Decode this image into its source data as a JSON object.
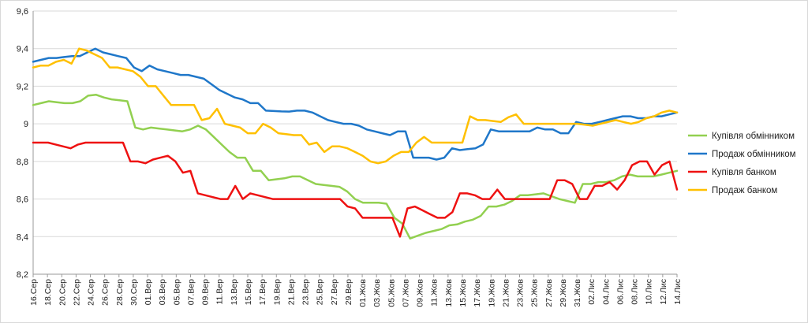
{
  "chart_data": {
    "type": "line",
    "title": "",
    "xlabel": "",
    "ylabel": "",
    "ylim": [
      8.2,
      9.6
    ],
    "y_ticks": [
      "8,2",
      "8,4",
      "8,6",
      "8,8",
      "9",
      "9,2",
      "9,4",
      "9,6"
    ],
    "grid": "horizontal",
    "legend_position": "right",
    "x_tick_labels": [
      "16.Сер",
      "18.Сер",
      "20.Сер",
      "22.Сер",
      "24.Сер",
      "26.Сер",
      "28.Сер",
      "30.Сер",
      "01.Вер",
      "03.Вер",
      "05.Вер",
      "07.Вер",
      "09.Вер",
      "11.Вер",
      "13.Вер",
      "15.Вер",
      "17.Вер",
      "19.Вер",
      "21.Вер",
      "23.Вер",
      "25.Вер",
      "27.Вер",
      "29.Вер",
      "01.Жов",
      "03.Жов",
      "05.Жов",
      "07.Жов",
      "09.Жов",
      "11.Жов",
      "13.Жов",
      "15.Жов",
      "17.Жов",
      "19.Жов",
      "21.Жов",
      "23.Жов",
      "25.Жов",
      "27.Жов",
      "29.Жов",
      "31.Жов",
      "02.Лис",
      "04.Лис",
      "06.Лис",
      "08.Лис",
      "10.Лис",
      "12.Лис",
      "14.Лис"
    ],
    "series": [
      {
        "name": "Купівля обмінником",
        "color": "#92d050",
        "values": [
          9.1,
          9.11,
          9.12,
          9.115,
          9.11,
          9.11,
          9.12,
          9.15,
          9.155,
          9.14,
          9.13,
          9.125,
          9.12,
          8.98,
          8.97,
          8.98,
          8.975,
          8.97,
          8.965,
          8.96,
          8.97,
          8.99,
          8.97,
          8.93,
          8.89,
          8.85,
          8.82,
          8.82,
          8.75,
          8.75,
          8.7,
          8.705,
          8.71,
          8.72,
          8.72,
          8.7,
          8.68,
          8.675,
          8.67,
          8.665,
          8.64,
          8.6,
          8.58,
          8.58,
          8.58,
          8.575,
          8.5,
          8.47,
          8.39,
          8.405,
          8.42,
          8.43,
          8.44,
          8.46,
          8.465,
          8.48,
          8.49,
          8.51,
          8.56,
          8.56,
          8.57,
          8.59,
          8.62,
          8.62,
          8.625,
          8.63,
          8.615,
          8.6,
          8.59,
          8.58,
          8.68,
          8.68,
          8.69,
          8.69,
          8.7,
          8.72,
          8.73,
          8.72,
          8.72,
          8.72,
          8.73,
          8.74,
          8.75
        ]
      },
      {
        "name": "Продаж обмінником",
        "color": "#1f77c9",
        "values": [
          9.33,
          9.34,
          9.35,
          9.35,
          9.355,
          9.36,
          9.36,
          9.38,
          9.4,
          9.38,
          9.37,
          9.36,
          9.35,
          9.3,
          9.28,
          9.31,
          9.29,
          9.28,
          9.27,
          9.26,
          9.26,
          9.25,
          9.24,
          9.21,
          9.18,
          9.16,
          9.14,
          9.13,
          9.11,
          9.11,
          9.07,
          9.068,
          9.066,
          9.065,
          9.07,
          9.07,
          9.06,
          9.04,
          9.02,
          9.01,
          9.0,
          9.0,
          8.99,
          8.97,
          8.96,
          8.95,
          8.94,
          8.96,
          8.96,
          8.82,
          8.82,
          8.82,
          8.81,
          8.82,
          8.87,
          8.86,
          8.865,
          8.87,
          8.89,
          8.97,
          8.96,
          8.96,
          8.96,
          8.96,
          8.96,
          8.98,
          8.97,
          8.97,
          8.95,
          8.95,
          9.01,
          9.0,
          9.0,
          9.01,
          9.02,
          9.03,
          9.04,
          9.04,
          9.03,
          9.03,
          9.04,
          9.04,
          9.05,
          9.06
        ]
      },
      {
        "name": "Купівля банком",
        "color": "#ee1111",
        "values": [
          8.9,
          8.9,
          8.9,
          8.89,
          8.88,
          8.87,
          8.89,
          8.9,
          8.9,
          8.9,
          8.9,
          8.9,
          8.9,
          8.8,
          8.8,
          8.79,
          8.81,
          8.82,
          8.83,
          8.8,
          8.74,
          8.75,
          8.63,
          8.62,
          8.61,
          8.6,
          8.6,
          8.67,
          8.6,
          8.63,
          8.62,
          8.61,
          8.6,
          8.6,
          8.6,
          8.6,
          8.6,
          8.6,
          8.6,
          8.6,
          8.6,
          8.6,
          8.56,
          8.55,
          8.5,
          8.5,
          8.5,
          8.5,
          8.5,
          8.4,
          8.55,
          8.56,
          8.54,
          8.52,
          8.5,
          8.5,
          8.53,
          8.63,
          8.63,
          8.62,
          8.6,
          8.6,
          8.65,
          8.6,
          8.6,
          8.6,
          8.6,
          8.6,
          8.6,
          8.6,
          8.7,
          8.7,
          8.68,
          8.6,
          8.6,
          8.67,
          8.67,
          8.69,
          8.65,
          8.7,
          8.78,
          8.8,
          8.8,
          8.73,
          8.78,
          8.8,
          8.65
        ]
      },
      {
        "name": "Продаж банком",
        "color": "#ffc000",
        "values": [
          9.3,
          9.31,
          9.31,
          9.33,
          9.34,
          9.32,
          9.4,
          9.39,
          9.37,
          9.35,
          9.3,
          9.3,
          9.29,
          9.28,
          9.25,
          9.2,
          9.2,
          9.15,
          9.1,
          9.1,
          9.1,
          9.1,
          9.02,
          9.03,
          9.08,
          9.0,
          8.99,
          8.98,
          8.95,
          8.95,
          9.0,
          8.98,
          8.95,
          8.945,
          8.94,
          8.94,
          8.89,
          8.9,
          8.85,
          8.88,
          8.88,
          8.87,
          8.85,
          8.83,
          8.8,
          8.79,
          8.8,
          8.83,
          8.85,
          8.85,
          8.9,
          8.93,
          8.9,
          8.9,
          8.9,
          8.9,
          8.9,
          9.04,
          9.02,
          9.02,
          9.015,
          9.01,
          9.035,
          9.05,
          9.0,
          9.0,
          9.0,
          9.0,
          9.0,
          9.0,
          9.0,
          9.0,
          8.995,
          8.99,
          9.0,
          9.01,
          9.02,
          9.01,
          9.0,
          9.01,
          9.03,
          9.04,
          9.06,
          9.07,
          9.06
        ]
      }
    ]
  }
}
